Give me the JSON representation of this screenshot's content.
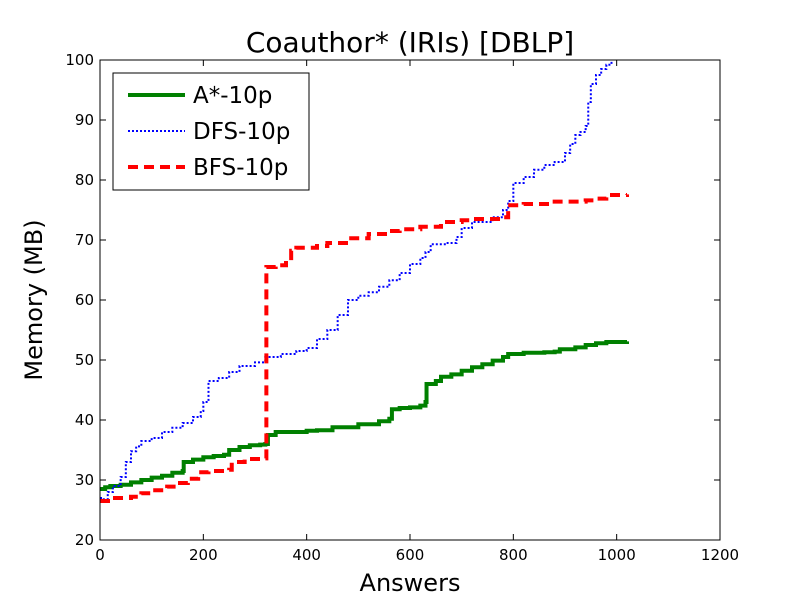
{
  "chart_data": {
    "type": "line",
    "title": "Coauthor* (IRIs) [DBLP]",
    "xlabel": "Answers",
    "ylabel": "Memory (MB)",
    "xlim": [
      0,
      1200
    ],
    "ylim": [
      20,
      100
    ],
    "xticks": [
      0,
      200,
      400,
      600,
      800,
      1000,
      1200
    ],
    "yticks": [
      20,
      30,
      40,
      50,
      60,
      70,
      80,
      90,
      100
    ],
    "grid": false,
    "legend_position": "top-left",
    "series": [
      {
        "name": "A*-10p",
        "color": "#008000",
        "style": "solid",
        "points": [
          [
            0,
            28.5
          ],
          [
            10,
            28.8
          ],
          [
            20,
            29
          ],
          [
            40,
            29.2
          ],
          [
            60,
            29.6
          ],
          [
            80,
            30
          ],
          [
            100,
            30.4
          ],
          [
            120,
            30.7
          ],
          [
            140,
            31.2
          ],
          [
            160,
            31.5
          ],
          [
            162,
            33
          ],
          [
            180,
            33.4
          ],
          [
            200,
            33.8
          ],
          [
            220,
            34
          ],
          [
            240,
            34.2
          ],
          [
            250,
            35
          ],
          [
            270,
            35.5
          ],
          [
            290,
            35.8
          ],
          [
            310,
            35.9
          ],
          [
            320,
            36
          ],
          [
            325,
            37.5
          ],
          [
            340,
            38
          ],
          [
            400,
            38.2
          ],
          [
            420,
            38.3
          ],
          [
            450,
            38.8
          ],
          [
            500,
            39.3
          ],
          [
            540,
            39.8
          ],
          [
            560,
            40.2
          ],
          [
            565,
            41.8
          ],
          [
            580,
            42
          ],
          [
            600,
            42.1
          ],
          [
            620,
            42.4
          ],
          [
            630,
            43
          ],
          [
            632,
            46
          ],
          [
            650,
            46.5
          ],
          [
            660,
            47.2
          ],
          [
            680,
            47.6
          ],
          [
            700,
            48.2
          ],
          [
            720,
            48.8
          ],
          [
            740,
            49.3
          ],
          [
            760,
            49.9
          ],
          [
            780,
            50.5
          ],
          [
            790,
            51
          ],
          [
            820,
            51.2
          ],
          [
            860,
            51.3
          ],
          [
            880,
            51.4
          ],
          [
            890,
            51.8
          ],
          [
            920,
            52.1
          ],
          [
            940,
            52.5
          ],
          [
            960,
            52.8
          ],
          [
            980,
            53
          ],
          [
            1020,
            53.1
          ]
        ]
      },
      {
        "name": "DFS-10p",
        "color": "#0000ff",
        "style": "dotted",
        "points": [
          [
            0,
            27
          ],
          [
            5,
            26.8
          ],
          [
            15,
            28
          ],
          [
            25,
            29
          ],
          [
            40,
            30.5
          ],
          [
            50,
            33
          ],
          [
            60,
            34.8
          ],
          [
            70,
            35.6
          ],
          [
            80,
            36.5
          ],
          [
            100,
            37
          ],
          [
            120,
            38
          ],
          [
            140,
            38.7
          ],
          [
            160,
            39.5
          ],
          [
            180,
            40.5
          ],
          [
            195,
            41.5
          ],
          [
            200,
            43
          ],
          [
            210,
            46.5
          ],
          [
            230,
            47
          ],
          [
            250,
            48
          ],
          [
            270,
            49
          ],
          [
            300,
            49.6
          ],
          [
            320,
            50.5
          ],
          [
            350,
            51
          ],
          [
            380,
            51.5
          ],
          [
            400,
            52
          ],
          [
            420,
            53.5
          ],
          [
            440,
            55
          ],
          [
            460,
            57.5
          ],
          [
            480,
            60
          ],
          [
            500,
            60.7
          ],
          [
            520,
            61.3
          ],
          [
            540,
            62.2
          ],
          [
            560,
            63.3
          ],
          [
            580,
            64.5
          ],
          [
            600,
            66
          ],
          [
            620,
            67
          ],
          [
            630,
            68
          ],
          [
            640,
            69.3
          ],
          [
            670,
            69.5
          ],
          [
            690,
            70.5
          ],
          [
            700,
            72
          ],
          [
            720,
            73
          ],
          [
            760,
            73.8
          ],
          [
            780,
            75
          ],
          [
            790,
            76.5
          ],
          [
            800,
            79.5
          ],
          [
            820,
            80.5
          ],
          [
            840,
            81.7
          ],
          [
            860,
            82.5
          ],
          [
            880,
            83
          ],
          [
            900,
            84.5
          ],
          [
            910,
            86
          ],
          [
            920,
            87.5
          ],
          [
            930,
            88
          ],
          [
            940,
            89
          ],
          [
            945,
            93
          ],
          [
            950,
            96
          ],
          [
            960,
            97.5
          ],
          [
            970,
            98.5
          ],
          [
            980,
            99.2
          ],
          [
            990,
            100
          ]
        ]
      },
      {
        "name": "BFS-10p",
        "color": "#ff0000",
        "style": "dashed",
        "points": [
          [
            0,
            26.5
          ],
          [
            20,
            27
          ],
          [
            60,
            27.2
          ],
          [
            80,
            27.8
          ],
          [
            100,
            28.3
          ],
          [
            130,
            28.9
          ],
          [
            150,
            29.5
          ],
          [
            170,
            30.2
          ],
          [
            190,
            31.3
          ],
          [
            210,
            31.5
          ],
          [
            250,
            31.7
          ],
          [
            255,
            33
          ],
          [
            280,
            33.5
          ],
          [
            320,
            33.6
          ],
          [
            322,
            65.5
          ],
          [
            340,
            65.8
          ],
          [
            360,
            66.5
          ],
          [
            370,
            68.2
          ],
          [
            380,
            68.7
          ],
          [
            420,
            69
          ],
          [
            440,
            69.5
          ],
          [
            480,
            70.3
          ],
          [
            520,
            71
          ],
          [
            560,
            71.5
          ],
          [
            580,
            71.8
          ],
          [
            620,
            72.2
          ],
          [
            660,
            73
          ],
          [
            700,
            73.3
          ],
          [
            720,
            73.5
          ],
          [
            780,
            73.8
          ],
          [
            790,
            75.8
          ],
          [
            820,
            76
          ],
          [
            880,
            76.4
          ],
          [
            940,
            76.6
          ],
          [
            960,
            76.9
          ],
          [
            980,
            77.5
          ],
          [
            1020,
            77.6
          ]
        ]
      }
    ]
  }
}
